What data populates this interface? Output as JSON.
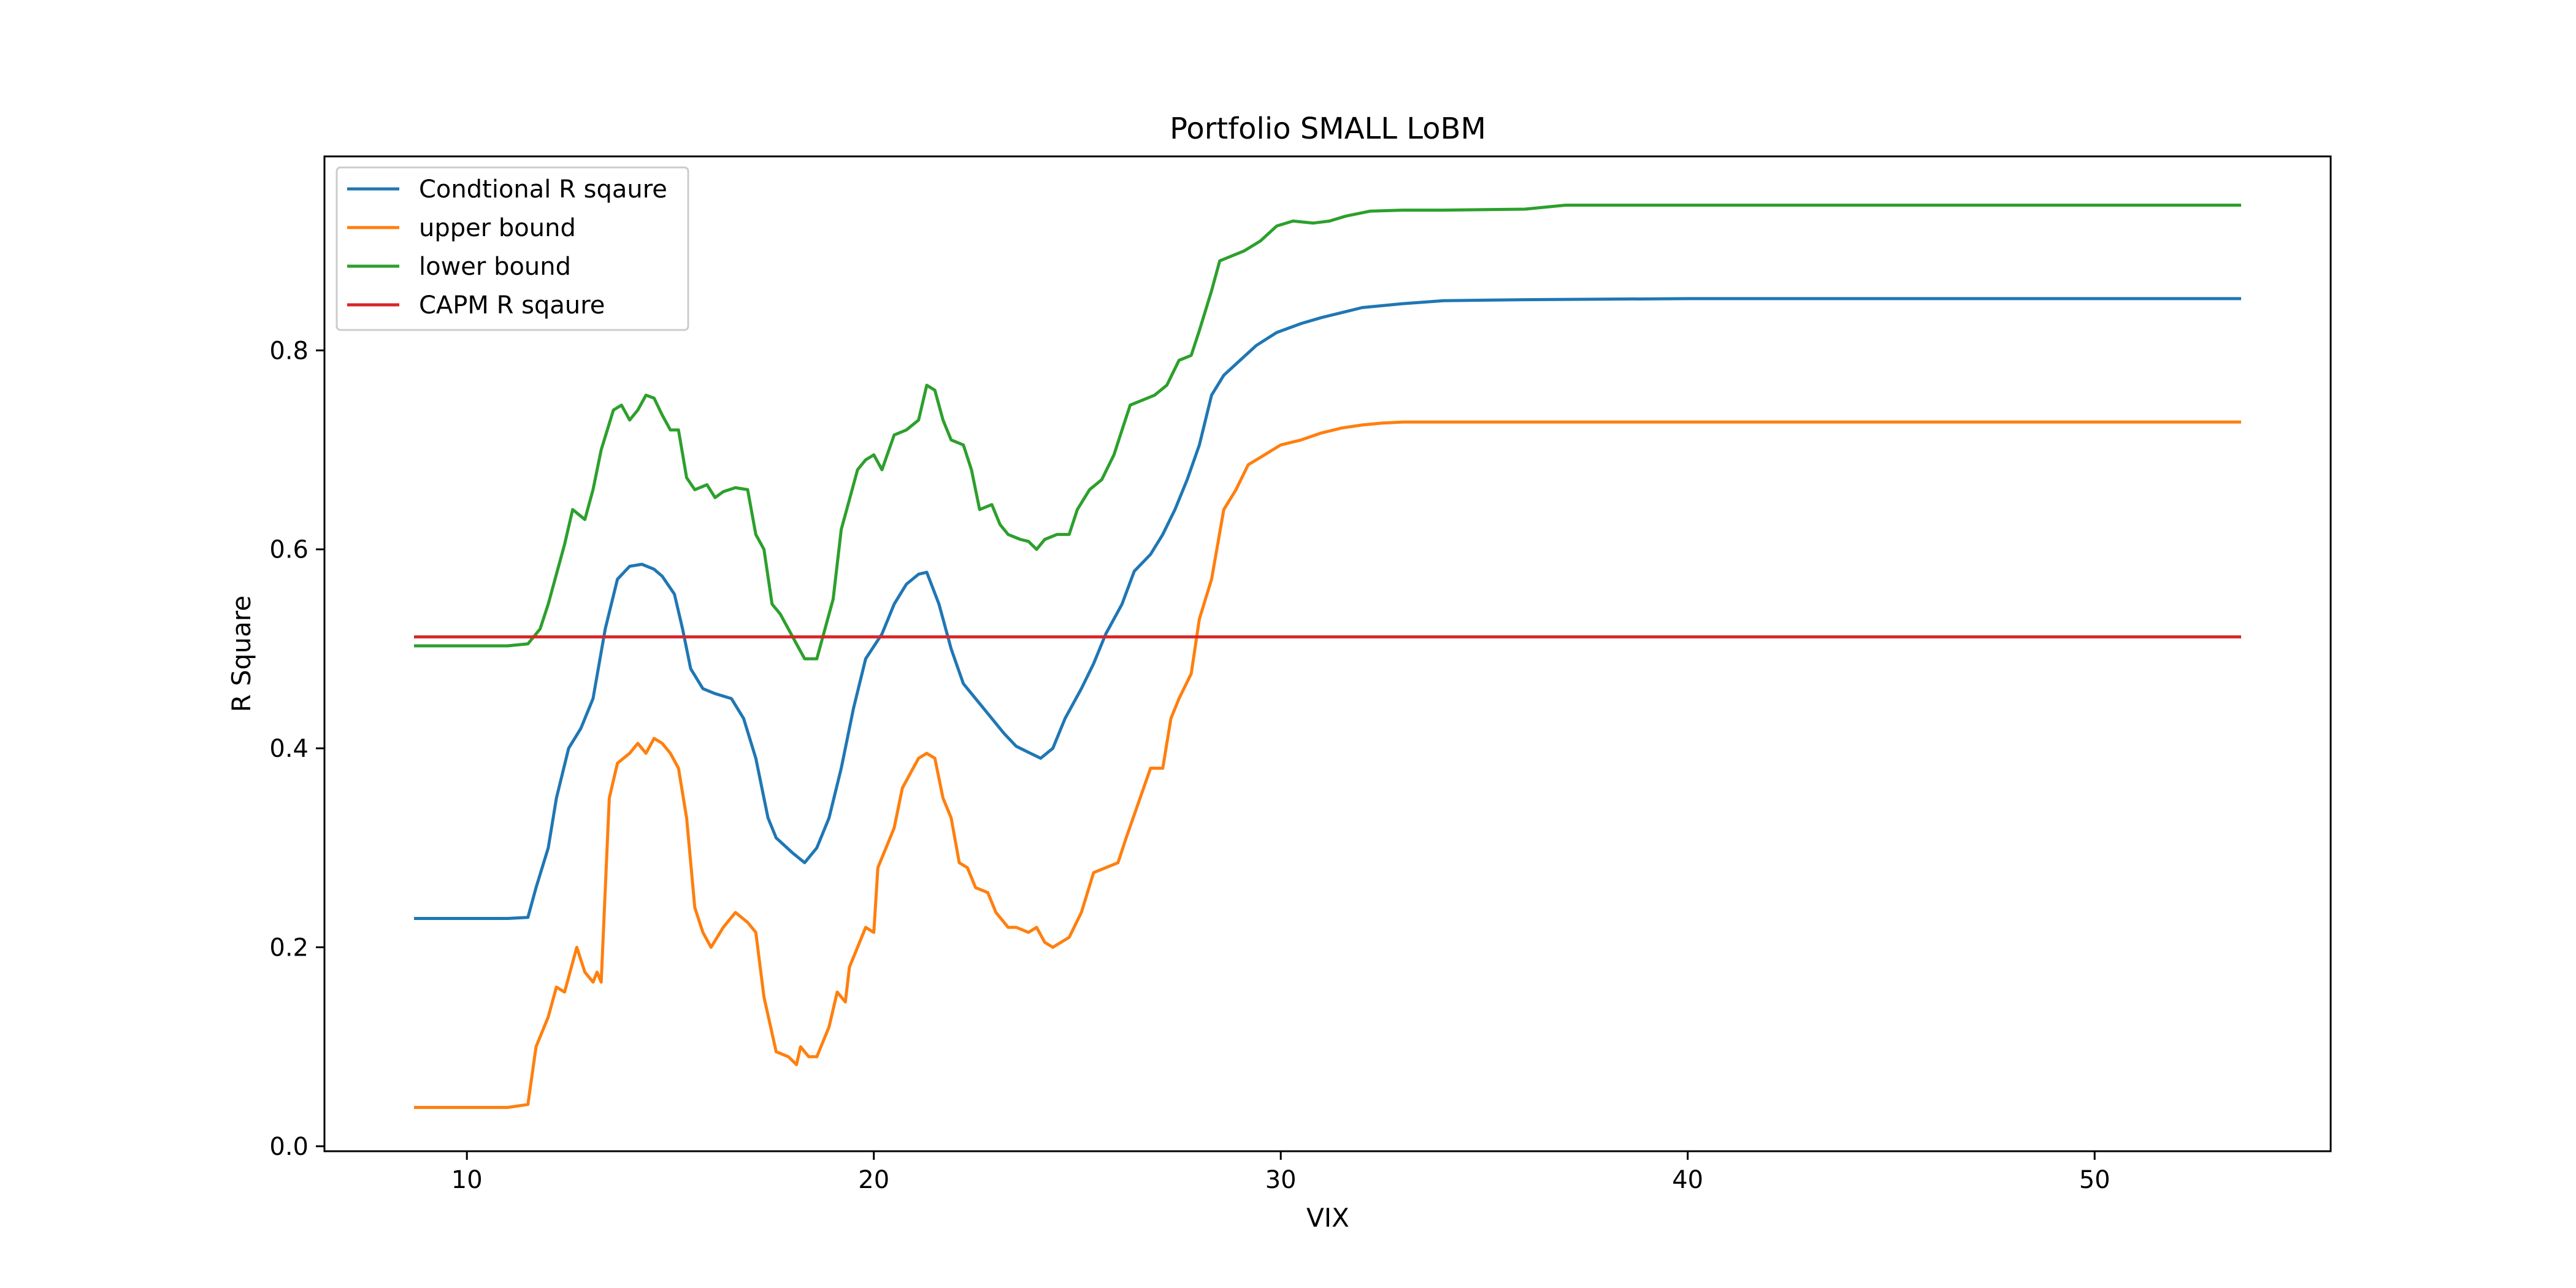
{
  "chart_data": {
    "type": "line",
    "title": "Portfolio SMALL LoBM",
    "xlabel": "VIX",
    "ylabel": "R Square",
    "xlim": [
      6.5,
      55.8
    ],
    "ylim": [
      -0.005,
      0.995
    ],
    "xticks": [
      10,
      20,
      30,
      40,
      50
    ],
    "yticks": [
      0.0,
      0.2,
      0.4,
      0.6,
      0.8
    ],
    "xtick_labels": [
      "10",
      "20",
      "30",
      "40",
      "50"
    ],
    "ytick_labels": [
      "0.0",
      "0.2",
      "0.4",
      "0.6",
      "0.8"
    ],
    "grid": false,
    "legend_position": "top-left",
    "series": [
      {
        "name": "Condtional R sqaure",
        "color": "#1f77b4",
        "points": [
          [
            8.7,
            0.229
          ],
          [
            11.0,
            0.229
          ],
          [
            11.5,
            0.23
          ],
          [
            11.7,
            0.26
          ],
          [
            12.0,
            0.3
          ],
          [
            12.2,
            0.35
          ],
          [
            12.5,
            0.4
          ],
          [
            12.8,
            0.42
          ],
          [
            13.1,
            0.45
          ],
          [
            13.4,
            0.52
          ],
          [
            13.7,
            0.57
          ],
          [
            14.0,
            0.583
          ],
          [
            14.3,
            0.585
          ],
          [
            14.6,
            0.58
          ],
          [
            14.8,
            0.573
          ],
          [
            15.1,
            0.555
          ],
          [
            15.3,
            0.52
          ],
          [
            15.5,
            0.48
          ],
          [
            15.8,
            0.46
          ],
          [
            16.1,
            0.455
          ],
          [
            16.5,
            0.45
          ],
          [
            16.8,
            0.43
          ],
          [
            17.1,
            0.39
          ],
          [
            17.4,
            0.33
          ],
          [
            17.6,
            0.31
          ],
          [
            18.0,
            0.295
          ],
          [
            18.3,
            0.285
          ],
          [
            18.6,
            0.3
          ],
          [
            18.9,
            0.33
          ],
          [
            19.2,
            0.38
          ],
          [
            19.5,
            0.44
          ],
          [
            19.8,
            0.49
          ],
          [
            20.2,
            0.515
          ],
          [
            20.5,
            0.545
          ],
          [
            20.8,
            0.565
          ],
          [
            21.1,
            0.575
          ],
          [
            21.3,
            0.577
          ],
          [
            21.6,
            0.545
          ],
          [
            21.9,
            0.5
          ],
          [
            22.2,
            0.465
          ],
          [
            22.5,
            0.45
          ],
          [
            22.8,
            0.435
          ],
          [
            23.2,
            0.415
          ],
          [
            23.5,
            0.402
          ],
          [
            23.8,
            0.396
          ],
          [
            24.1,
            0.39
          ],
          [
            24.4,
            0.4
          ],
          [
            24.7,
            0.43
          ],
          [
            25.1,
            0.46
          ],
          [
            25.4,
            0.485
          ],
          [
            25.7,
            0.515
          ],
          [
            26.1,
            0.545
          ],
          [
            26.4,
            0.578
          ],
          [
            26.8,
            0.595
          ],
          [
            27.1,
            0.615
          ],
          [
            27.4,
            0.64
          ],
          [
            27.7,
            0.67
          ],
          [
            28.0,
            0.705
          ],
          [
            28.3,
            0.755
          ],
          [
            28.6,
            0.775
          ],
          [
            29.0,
            0.79
          ],
          [
            29.4,
            0.805
          ],
          [
            29.9,
            0.818
          ],
          [
            30.5,
            0.827
          ],
          [
            31.0,
            0.833
          ],
          [
            31.5,
            0.838
          ],
          [
            32.0,
            0.843
          ],
          [
            33.0,
            0.847
          ],
          [
            34.0,
            0.85
          ],
          [
            36.0,
            0.851
          ],
          [
            40.0,
            0.852
          ],
          [
            53.6,
            0.852
          ]
        ]
      },
      {
        "name": "upper bound",
        "color": "#ff7f0e",
        "points": [
          [
            8.7,
            0.039
          ],
          [
            11.0,
            0.039
          ],
          [
            11.5,
            0.042
          ],
          [
            11.7,
            0.1
          ],
          [
            12.0,
            0.13
          ],
          [
            12.2,
            0.16
          ],
          [
            12.4,
            0.155
          ],
          [
            12.7,
            0.2
          ],
          [
            12.9,
            0.175
          ],
          [
            13.1,
            0.165
          ],
          [
            13.2,
            0.175
          ],
          [
            13.3,
            0.165
          ],
          [
            13.5,
            0.35
          ],
          [
            13.7,
            0.385
          ],
          [
            14.0,
            0.395
          ],
          [
            14.2,
            0.405
          ],
          [
            14.4,
            0.395
          ],
          [
            14.6,
            0.41
          ],
          [
            14.8,
            0.405
          ],
          [
            15.0,
            0.395
          ],
          [
            15.2,
            0.38
          ],
          [
            15.4,
            0.33
          ],
          [
            15.6,
            0.24
          ],
          [
            15.8,
            0.215
          ],
          [
            16.0,
            0.2
          ],
          [
            16.3,
            0.22
          ],
          [
            16.6,
            0.235
          ],
          [
            16.9,
            0.225
          ],
          [
            17.1,
            0.215
          ],
          [
            17.3,
            0.15
          ],
          [
            17.6,
            0.095
          ],
          [
            17.9,
            0.09
          ],
          [
            18.1,
            0.082
          ],
          [
            18.2,
            0.1
          ],
          [
            18.4,
            0.09
          ],
          [
            18.6,
            0.09
          ],
          [
            18.9,
            0.12
          ],
          [
            19.1,
            0.155
          ],
          [
            19.3,
            0.145
          ],
          [
            19.4,
            0.18
          ],
          [
            19.6,
            0.2
          ],
          [
            19.8,
            0.22
          ],
          [
            20.0,
            0.215
          ],
          [
            20.1,
            0.28
          ],
          [
            20.3,
            0.3
          ],
          [
            20.5,
            0.32
          ],
          [
            20.7,
            0.36
          ],
          [
            20.9,
            0.375
          ],
          [
            21.1,
            0.39
          ],
          [
            21.3,
            0.395
          ],
          [
            21.5,
            0.39
          ],
          [
            21.7,
            0.35
          ],
          [
            21.9,
            0.33
          ],
          [
            22.1,
            0.285
          ],
          [
            22.3,
            0.28
          ],
          [
            22.5,
            0.26
          ],
          [
            22.8,
            0.255
          ],
          [
            23.0,
            0.235
          ],
          [
            23.3,
            0.22
          ],
          [
            23.5,
            0.22
          ],
          [
            23.8,
            0.215
          ],
          [
            24.0,
            0.22
          ],
          [
            24.2,
            0.205
          ],
          [
            24.4,
            0.2
          ],
          [
            24.6,
            0.205
          ],
          [
            24.8,
            0.21
          ],
          [
            25.1,
            0.235
          ],
          [
            25.4,
            0.275
          ],
          [
            25.7,
            0.28
          ],
          [
            26.0,
            0.285
          ],
          [
            26.2,
            0.31
          ],
          [
            26.5,
            0.345
          ],
          [
            26.8,
            0.38
          ],
          [
            27.1,
            0.38
          ],
          [
            27.3,
            0.43
          ],
          [
            27.5,
            0.45
          ],
          [
            27.8,
            0.475
          ],
          [
            28.0,
            0.53
          ],
          [
            28.3,
            0.57
          ],
          [
            28.6,
            0.64
          ],
          [
            28.9,
            0.66
          ],
          [
            29.2,
            0.685
          ],
          [
            29.6,
            0.695
          ],
          [
            30.0,
            0.705
          ],
          [
            30.5,
            0.71
          ],
          [
            31.0,
            0.717
          ],
          [
            31.5,
            0.722
          ],
          [
            32.0,
            0.725
          ],
          [
            32.5,
            0.727
          ],
          [
            33.0,
            0.728
          ],
          [
            34.0,
            0.728
          ],
          [
            38.0,
            0.728
          ],
          [
            53.6,
            0.728
          ]
        ]
      },
      {
        "name": "lower bound",
        "color": "#2ca02c",
        "points": [
          [
            8.7,
            0.503
          ],
          [
            11.0,
            0.503
          ],
          [
            11.5,
            0.505
          ],
          [
            11.8,
            0.52
          ],
          [
            12.0,
            0.545
          ],
          [
            12.2,
            0.575
          ],
          [
            12.4,
            0.605
          ],
          [
            12.6,
            0.64
          ],
          [
            12.9,
            0.63
          ],
          [
            13.1,
            0.66
          ],
          [
            13.3,
            0.7
          ],
          [
            13.6,
            0.74
          ],
          [
            13.8,
            0.745
          ],
          [
            14.0,
            0.73
          ],
          [
            14.2,
            0.74
          ],
          [
            14.4,
            0.755
          ],
          [
            14.6,
            0.752
          ],
          [
            14.8,
            0.735
          ],
          [
            15.0,
            0.72
          ],
          [
            15.2,
            0.72
          ],
          [
            15.4,
            0.672
          ],
          [
            15.6,
            0.66
          ],
          [
            15.9,
            0.665
          ],
          [
            16.1,
            0.652
          ],
          [
            16.3,
            0.658
          ],
          [
            16.6,
            0.662
          ],
          [
            16.9,
            0.66
          ],
          [
            17.1,
            0.615
          ],
          [
            17.3,
            0.6
          ],
          [
            17.5,
            0.545
          ],
          [
            17.7,
            0.535
          ],
          [
            17.9,
            0.52
          ],
          [
            18.1,
            0.505
          ],
          [
            18.3,
            0.49
          ],
          [
            18.6,
            0.49
          ],
          [
            18.8,
            0.52
          ],
          [
            19.0,
            0.55
          ],
          [
            19.2,
            0.62
          ],
          [
            19.4,
            0.65
          ],
          [
            19.6,
            0.68
          ],
          [
            19.8,
            0.69
          ],
          [
            20.0,
            0.695
          ],
          [
            20.2,
            0.68
          ],
          [
            20.5,
            0.715
          ],
          [
            20.8,
            0.72
          ],
          [
            21.1,
            0.73
          ],
          [
            21.3,
            0.765
          ],
          [
            21.5,
            0.76
          ],
          [
            21.7,
            0.73
          ],
          [
            21.9,
            0.71
          ],
          [
            22.2,
            0.705
          ],
          [
            22.4,
            0.68
          ],
          [
            22.6,
            0.64
          ],
          [
            22.9,
            0.645
          ],
          [
            23.1,
            0.625
          ],
          [
            23.3,
            0.615
          ],
          [
            23.6,
            0.61
          ],
          [
            23.8,
            0.608
          ],
          [
            24.0,
            0.6
          ],
          [
            24.2,
            0.61
          ],
          [
            24.5,
            0.615
          ],
          [
            24.8,
            0.615
          ],
          [
            25.0,
            0.64
          ],
          [
            25.3,
            0.66
          ],
          [
            25.6,
            0.67
          ],
          [
            25.9,
            0.695
          ],
          [
            26.1,
            0.72
          ],
          [
            26.3,
            0.745
          ],
          [
            26.6,
            0.75
          ],
          [
            26.9,
            0.755
          ],
          [
            27.2,
            0.765
          ],
          [
            27.5,
            0.79
          ],
          [
            27.8,
            0.795
          ],
          [
            28.0,
            0.82
          ],
          [
            28.3,
            0.86
          ],
          [
            28.5,
            0.89
          ],
          [
            28.8,
            0.895
          ],
          [
            29.1,
            0.9
          ],
          [
            29.5,
            0.91
          ],
          [
            29.9,
            0.925
          ],
          [
            30.3,
            0.93
          ],
          [
            30.8,
            0.928
          ],
          [
            31.2,
            0.93
          ],
          [
            31.6,
            0.935
          ],
          [
            32.2,
            0.94
          ],
          [
            33.0,
            0.941
          ],
          [
            34.0,
            0.941
          ],
          [
            36.0,
            0.942
          ],
          [
            37.0,
            0.946
          ],
          [
            40.0,
            0.946
          ],
          [
            53.6,
            0.946
          ]
        ]
      },
      {
        "name": "CAPM R sqaure",
        "color": "#d62728",
        "points": [
          [
            8.7,
            0.512
          ],
          [
            53.6,
            0.512
          ]
        ]
      }
    ]
  }
}
